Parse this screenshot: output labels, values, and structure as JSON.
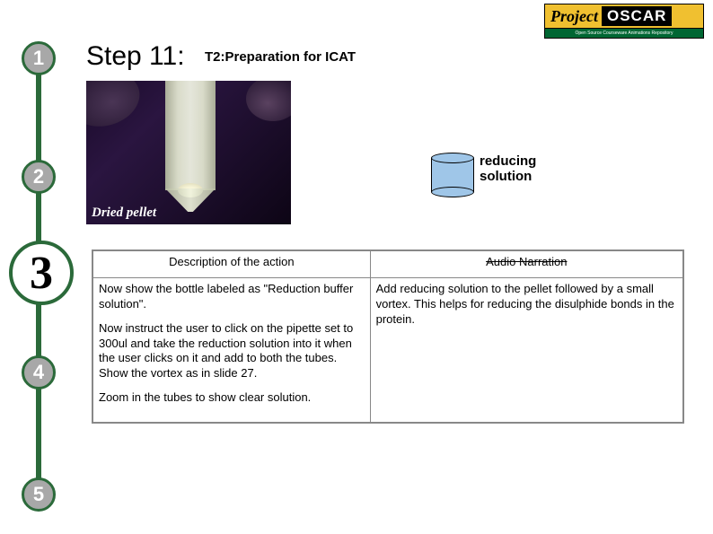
{
  "logo": {
    "project": "Project",
    "oscar": "OSCAR",
    "tagline": "Open Source Courseware Animations Repository"
  },
  "steps": {
    "s1": "1",
    "s2": "2",
    "s3": "3",
    "s4": "4",
    "s5": "5"
  },
  "title": {
    "main": "Step 11:",
    "sub": "T2:Preparation for ICAT"
  },
  "photo": {
    "label": "Dried pellet"
  },
  "cylinder": {
    "line1": "reducing",
    "line2": "solution"
  },
  "table": {
    "header_left": "Description of the action",
    "header_right": "Audio Narration",
    "left_p1": "Now show the bottle labeled as \"Reduction buffer  solution\".",
    "left_p2": "Now instruct the user to click on the pipette set to 300ul and take the reduction solution into it when the user clicks on it and add to both the tubes. Show the vortex as in slide 27.",
    "left_p3": "Zoom in the tubes to show clear solution.",
    "right_p1": "Add reducing solution to the pellet followed by a small vortex. This helps for reducing the disulphide bonds in the protein."
  }
}
